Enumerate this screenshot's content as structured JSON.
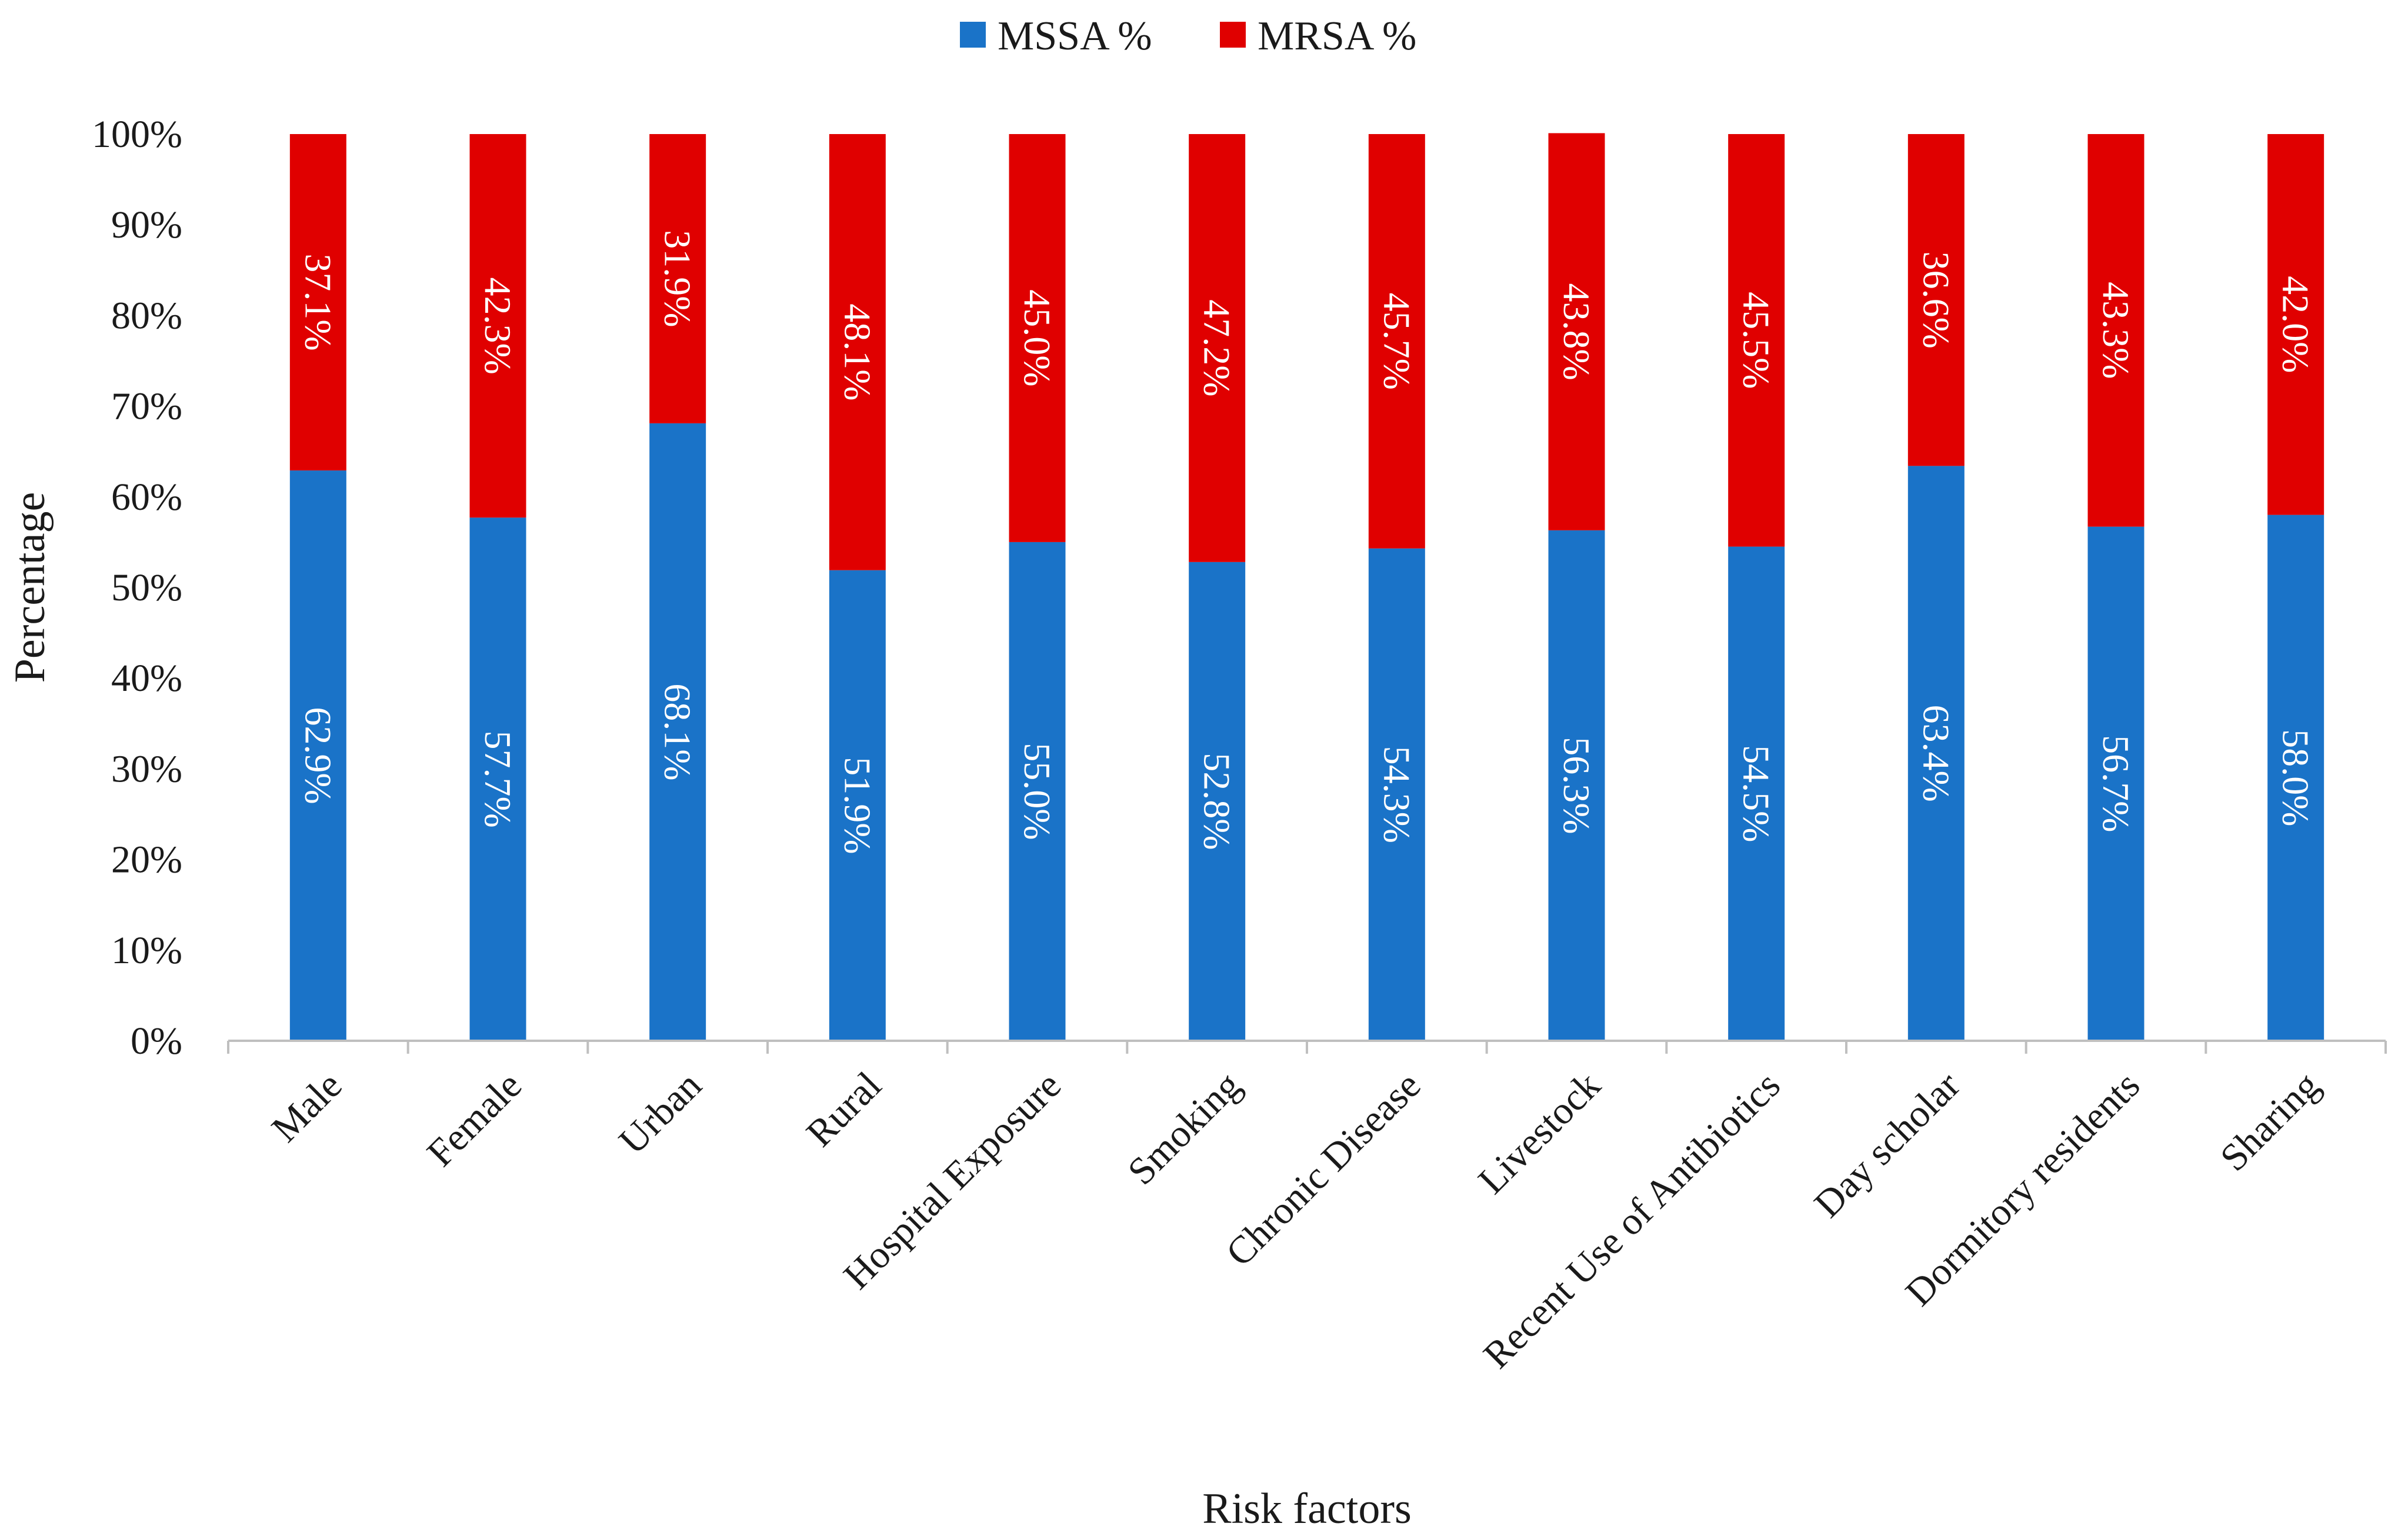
{
  "chart_data": {
    "type": "bar",
    "stacked": true,
    "title": "",
    "xlabel": "Risk factors",
    "ylabel": "Percentage",
    "ylim": [
      0,
      100
    ],
    "yticks": [
      "0%",
      "10%",
      "20%",
      "30%",
      "40%",
      "50%",
      "60%",
      "70%",
      "80%",
      "90%",
      "100%"
    ],
    "legend_position": "top-center",
    "categories": [
      "Male",
      "Female",
      "Urban",
      "Rural",
      "Hospital Exposure",
      "Smoking",
      "Chronic Disease",
      "Livestock",
      "Recent Use of Antibiotics",
      "Day scholar",
      "Dormitory residents",
      "Sharing"
    ],
    "series": [
      {
        "name": "MSSA %",
        "color": "#1a73c8",
        "values": [
          62.9,
          57.7,
          68.1,
          51.9,
          55.0,
          52.8,
          54.3,
          56.3,
          54.5,
          63.4,
          56.7,
          58.0
        ],
        "labels": [
          "62.9%",
          "57.7%",
          "68.1%",
          "51.9%",
          "55.0%",
          "52.8%",
          "54.3%",
          "56.3%",
          "54.5%",
          "63.4%",
          "56.7%",
          "58.0%"
        ]
      },
      {
        "name": "MRSA %",
        "color": "#e00000",
        "values": [
          37.1,
          42.3,
          31.9,
          48.1,
          45.0,
          47.2,
          45.7,
          43.8,
          45.5,
          36.6,
          43.3,
          42.0
        ],
        "labels": [
          "37.1%",
          "42.3%",
          "31.9%",
          "48.1%",
          "45.0%",
          "47.2%",
          "45.7%",
          "43.8%",
          "45.5%",
          "36.6%",
          "43.3%",
          "42.0%"
        ]
      }
    ]
  }
}
